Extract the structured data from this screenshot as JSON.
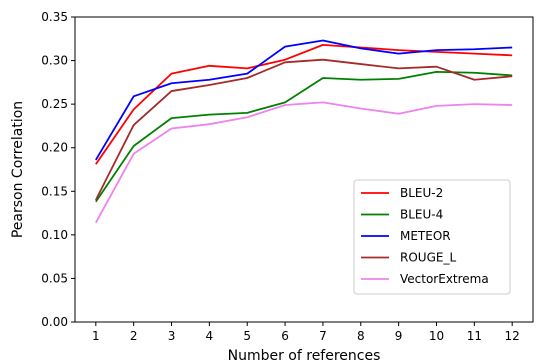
{
  "chart_data": {
    "type": "line",
    "xlabel": "Number of references",
    "ylabel": "Pearson Correlation",
    "x": [
      1,
      2,
      3,
      4,
      5,
      6,
      7,
      8,
      9,
      10,
      11,
      12
    ],
    "xticks": [
      "1",
      "2",
      "3",
      "4",
      "5",
      "6",
      "7",
      "8",
      "9",
      "10",
      "11",
      "12"
    ],
    "xlim": [
      0.45,
      12.55
    ],
    "ylim": [
      0,
      0.35
    ],
    "yticks": [
      "0.00",
      "0.05",
      "0.10",
      "0.15",
      "0.20",
      "0.25",
      "0.30",
      "0.35"
    ],
    "grid": false,
    "legend_position": "lower right",
    "series": [
      {
        "name": "BLEU-2",
        "color": "#ff0000",
        "values": [
          0.181,
          0.244,
          0.285,
          0.294,
          0.291,
          0.301,
          0.318,
          0.315,
          0.312,
          0.31,
          0.308,
          0.306
        ]
      },
      {
        "name": "BLEU-4",
        "color": "#008000",
        "values": [
          0.138,
          0.202,
          0.234,
          0.238,
          0.24,
          0.252,
          0.28,
          0.278,
          0.279,
          0.287,
          0.286,
          0.283
        ]
      },
      {
        "name": "METEOR",
        "color": "#0000ff",
        "values": [
          0.186,
          0.259,
          0.274,
          0.278,
          0.285,
          0.316,
          0.323,
          0.314,
          0.308,
          0.312,
          0.313,
          0.315
        ]
      },
      {
        "name": "ROUGE_L",
        "color": "#a52a2a",
        "values": [
          0.14,
          0.226,
          0.265,
          0.272,
          0.28,
          0.298,
          0.301,
          0.296,
          0.291,
          0.293,
          0.278,
          0.282
        ]
      },
      {
        "name": "VectorExtrema",
        "color": "#ee82ee",
        "values": [
          0.114,
          0.193,
          0.222,
          0.227,
          0.235,
          0.249,
          0.252,
          0.245,
          0.239,
          0.248,
          0.25,
          0.249
        ]
      }
    ]
  }
}
